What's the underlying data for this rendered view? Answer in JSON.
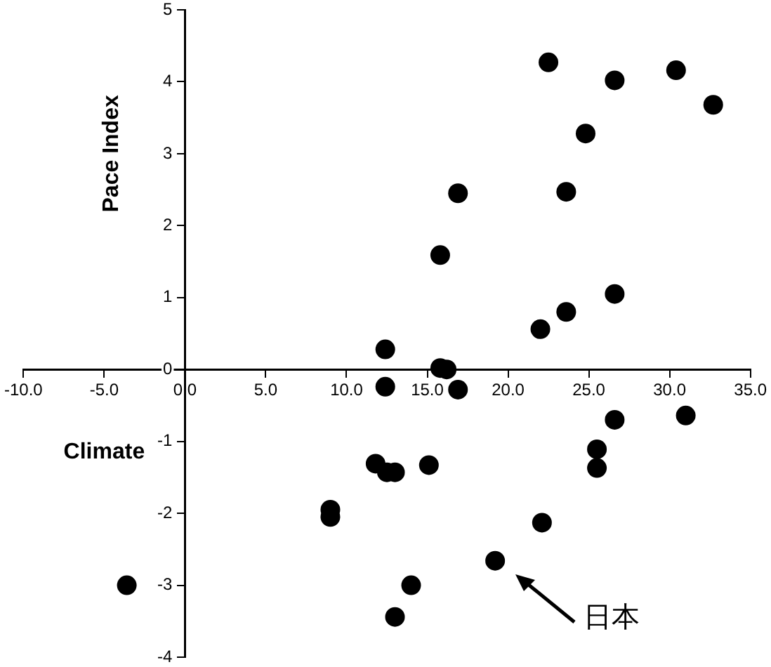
{
  "chart_data": {
    "type": "scatter",
    "xlabel": "Climate",
    "ylabel": "Pace Index",
    "x": [
      -3.6,
      9.0,
      9.0,
      12.4,
      12.4,
      11.8,
      12.5,
      13.0,
      13.0,
      14.0,
      15.1,
      15.8,
      15.8,
      16.2,
      16.9,
      16.9,
      19.2,
      22.0,
      22.1,
      22.5,
      23.6,
      23.6,
      24.8,
      25.5,
      25.5,
      26.6,
      26.6,
      26.6,
      30.4,
      31.0,
      32.7
    ],
    "series": [
      {
        "color": "#000000",
        "values": [
          -3.0,
          -1.95,
          -2.05,
          0.28,
          -0.24,
          -1.31,
          -1.43,
          -1.43,
          -3.44,
          -3.0,
          -1.33,
          1.59,
          0.02,
          0.0,
          -0.28,
          2.45,
          -2.66,
          0.56,
          -2.13,
          4.27,
          0.8,
          2.47,
          3.28,
          -1.11,
          -1.37,
          -0.7,
          1.05,
          4.02,
          4.16,
          -0.64,
          3.68
        ]
      }
    ],
    "xlim": [
      -10,
      35
    ],
    "ylim": [
      -4,
      5
    ],
    "xticks": [
      {
        "value": -10,
        "label": "-10.0"
      },
      {
        "value": -5,
        "label": "-5.0"
      },
      {
        "value": 0,
        "label": "0.0"
      },
      {
        "value": 5,
        "label": "5.0"
      },
      {
        "value": 10,
        "label": "10.0"
      },
      {
        "value": 15,
        "label": "15.0"
      },
      {
        "value": 20,
        "label": "20.0"
      },
      {
        "value": 25,
        "label": "25.0"
      },
      {
        "value": 30,
        "label": "30.0"
      },
      {
        "value": 35,
        "label": "35.0"
      }
    ],
    "yticks": [
      -4,
      -3,
      -2,
      -1,
      0,
      1,
      2,
      3,
      4,
      5
    ],
    "grid": false,
    "legend": false,
    "marker": "circle",
    "annotations": [
      "日本"
    ]
  }
}
